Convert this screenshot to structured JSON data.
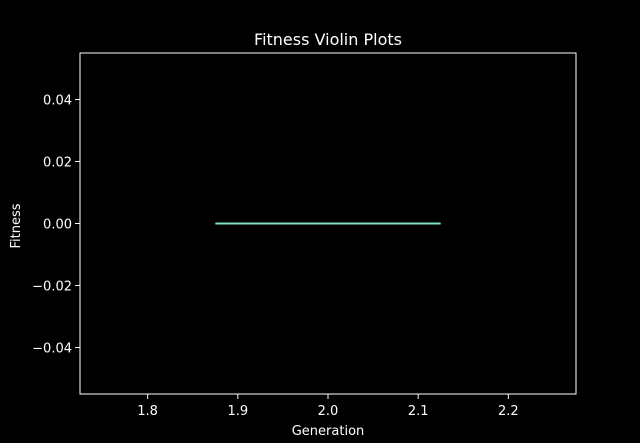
{
  "chart_data": {
    "type": "violin",
    "title": "Fitness Violin Plots",
    "xlabel": "Generation",
    "ylabel": "Fitness",
    "xlim": [
      1.725,
      2.275
    ],
    "ylim": [
      -0.055,
      0.055
    ],
    "xticks": [
      1.8,
      1.9,
      2.0,
      2.1,
      2.2
    ],
    "xtick_labels": [
      "1.8",
      "1.9",
      "2.0",
      "2.1",
      "2.2"
    ],
    "yticks": [
      -0.04,
      -0.02,
      0.0,
      0.02,
      0.04
    ],
    "ytick_labels": [
      "−0.04",
      "−0.02",
      "0.00",
      "0.02",
      "0.04"
    ],
    "grid": false,
    "series": [
      {
        "generation": 2,
        "values": [
          0.0
        ],
        "median": 0.0,
        "extent": [
          1.875,
          2.125
        ],
        "color": "#7fe0c8"
      }
    ],
    "colors": {
      "background": "#000000",
      "foreground": "#ffffff",
      "violin": "#7fe0c8"
    }
  }
}
